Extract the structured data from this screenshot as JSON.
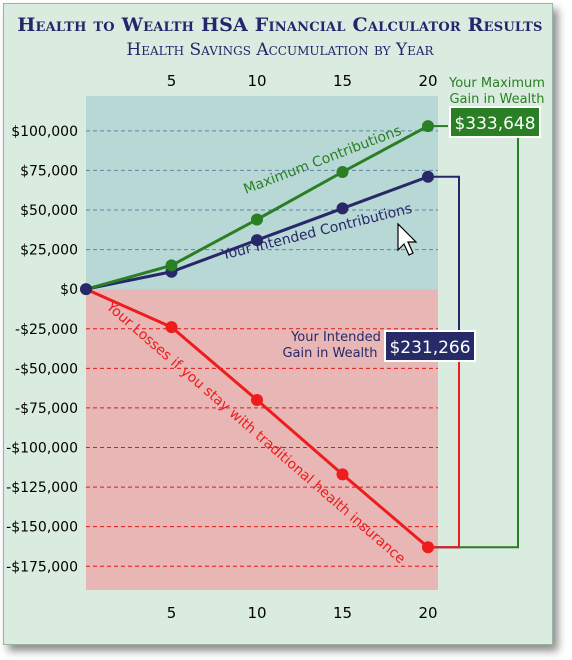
{
  "title": "Health to Wealth HSA Financial Calculator Results",
  "subtitle": "Health Savings Accumulation by Year",
  "colors": {
    "panel_bg": "#d9ecdf",
    "plot_positive_bg": "#b8d8d6",
    "plot_negative_bg": "#e8b6b4",
    "maximum": "#2a7f24",
    "intended": "#282868",
    "losses": "#ee1c1c",
    "axis_text": "#000000",
    "callout_max_bg": "#2a7f24",
    "callout_intended_bg": "#262a66"
  },
  "chart_data": {
    "type": "line",
    "x_ticks": [
      5,
      10,
      15,
      20
    ],
    "x_range": [
      0,
      20.5
    ],
    "y_range": [
      -190000,
      122000
    ],
    "y_ticks": [
      100000,
      75000,
      50000,
      25000,
      0,
      -25000,
      -50000,
      -75000,
      -100000,
      -125000,
      -150000,
      -175000
    ],
    "y_tick_labels": [
      "$100,000",
      "$75,000",
      "$50,000",
      "$25,000",
      "$0",
      "-$25,000",
      "-$50,000",
      "-$75,000",
      "-$100,000",
      "-$125,000",
      "-$150,000",
      "-$175,000"
    ],
    "grid": true,
    "series": [
      {
        "name": "Maximum Contributions",
        "color": "#2a7f24",
        "x": [
          0,
          5,
          10,
          15,
          20
        ],
        "values": [
          0,
          15000,
          44000,
          74000,
          103000
        ]
      },
      {
        "name": "Your Intended Contributions",
        "color": "#282868",
        "x": [
          0,
          5,
          10,
          15,
          20
        ],
        "values": [
          0,
          11000,
          31000,
          51000,
          71000
        ]
      },
      {
        "name": "Your Losses if you stay with traditional health insurance",
        "color": "#ee1c1c",
        "x": [
          0,
          5,
          10,
          15,
          20
        ],
        "values": [
          0,
          -24000,
          -70000,
          -117000,
          -163000
        ]
      }
    ],
    "callouts": {
      "maximum": {
        "label_line1": "Your Maximum",
        "label_line2": "Gain in Wealth",
        "value": "$333,648"
      },
      "intended": {
        "label_line1": "Your Intended",
        "label_line2": "Gain in Wealth",
        "value": "$231,266"
      }
    }
  }
}
